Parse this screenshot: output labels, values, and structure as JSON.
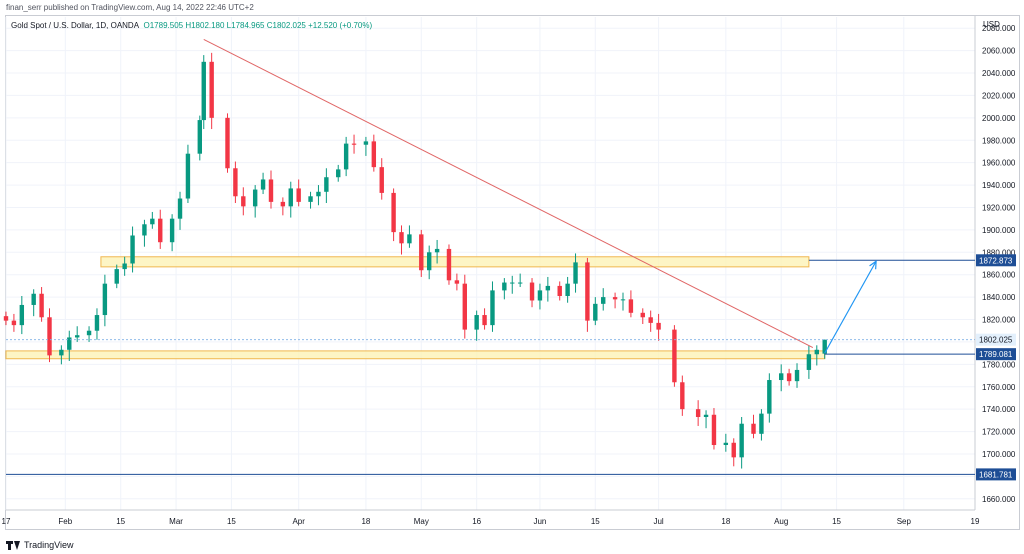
{
  "header": {
    "publisher": "finan_serr published on TradingView.com, Aug 14, 2022 22:46 UTC+2",
    "symbol": "Gold Spot / U.S. Dollar, 1D, OANDA",
    "ohlc": "O1789.505  H1802.180  L1784.965  C1802.025  +12.520 (+0.70%)",
    "currency": "USD"
  },
  "footer": {
    "brand": "TradingView",
    "icon": "tradingview-logo-icon"
  },
  "colors": {
    "up": "#089981",
    "down": "#f23645",
    "trendline": "#e06666",
    "zone_fill": "#fdf3b6",
    "zone_stroke": "#f0b74f",
    "hline": "#1e4e96",
    "arrow": "#2196f3",
    "last_price": "#e3f0fc"
  },
  "chart_data": {
    "type": "candlestick",
    "title": "Gold Spot / U.S. Dollar, 1D, OANDA",
    "ylim": [
      1650,
      2090
    ],
    "y_ticks": [
      1660,
      1680,
      1700,
      1720,
      1740,
      1760,
      1780,
      1800,
      1820,
      1840,
      1860,
      1880,
      1900,
      1920,
      1940,
      1960,
      1980,
      2000,
      2020,
      2040,
      2060,
      2080
    ],
    "y_tick_labels": [
      "1660.000",
      "1680.000",
      "1700.000",
      "1720.000",
      "1740.000",
      "1760.000",
      "1780.000",
      "1800.000",
      "1820.000",
      "1840.000",
      "1860.000",
      "1880.000",
      "1900.000",
      "1920.000",
      "1940.000",
      "1960.000",
      "1980.000",
      "2000.000",
      "2020.000",
      "2040.000",
      "2060.000",
      "2080.000"
    ],
    "x_range": [
      "2022-01-17",
      "2022-09-19"
    ],
    "x_ticks": [
      {
        "date": "2022-01-17",
        "label": "17"
      },
      {
        "date": "2022-02-01",
        "label": "Feb"
      },
      {
        "date": "2022-02-15",
        "label": "15"
      },
      {
        "date": "2022-03-01",
        "label": "Mar"
      },
      {
        "date": "2022-03-15",
        "label": "15"
      },
      {
        "date": "2022-04-01",
        "label": "Apr"
      },
      {
        "date": "2022-04-18",
        "label": "18"
      },
      {
        "date": "2022-05-02",
        "label": "May"
      },
      {
        "date": "2022-05-16",
        "label": "16"
      },
      {
        "date": "2022-06-01",
        "label": "Jun"
      },
      {
        "date": "2022-06-15",
        "label": "15"
      },
      {
        "date": "2022-07-01",
        "label": "Jul"
      },
      {
        "date": "2022-07-18",
        "label": "18"
      },
      {
        "date": "2022-08-01",
        "label": "Aug"
      },
      {
        "date": "2022-08-15",
        "label": "15"
      },
      {
        "date": "2022-09-01",
        "label": "Sep"
      },
      {
        "date": "2022-09-19",
        "label": "19"
      }
    ],
    "closes": [
      [
        "2022-01-17",
        1819
      ],
      [
        "2022-01-19",
        1815
      ],
      [
        "2022-01-21",
        1833
      ],
      [
        "2022-01-24",
        1843
      ],
      [
        "2022-01-26",
        1822
      ],
      [
        "2022-01-28",
        1788
      ],
      [
        "2022-01-31",
        1793
      ],
      [
        "2022-02-02",
        1804
      ],
      [
        "2022-02-04",
        1806
      ],
      [
        "2022-02-07",
        1810
      ],
      [
        "2022-02-09",
        1824
      ],
      [
        "2022-02-11",
        1852
      ],
      [
        "2022-02-14",
        1865
      ],
      [
        "2022-02-16",
        1870
      ],
      [
        "2022-02-18",
        1895
      ],
      [
        "2022-02-21",
        1905
      ],
      [
        "2022-02-23",
        1910
      ],
      [
        "2022-02-25",
        1889
      ],
      [
        "2022-02-28",
        1910
      ],
      [
        "2022-03-02",
        1928
      ],
      [
        "2022-03-04",
        1968
      ],
      [
        "2022-03-07",
        1998
      ],
      [
        "2022-03-08",
        2050
      ],
      [
        "2022-03-10",
        2000
      ],
      [
        "2022-03-14",
        1955
      ],
      [
        "2022-03-16",
        1930
      ],
      [
        "2022-03-18",
        1921
      ],
      [
        "2022-03-21",
        1936
      ],
      [
        "2022-03-23",
        1945
      ],
      [
        "2022-03-25",
        1925
      ],
      [
        "2022-03-28",
        1921
      ],
      [
        "2022-03-30",
        1937
      ],
      [
        "2022-04-01",
        1925
      ],
      [
        "2022-04-04",
        1930
      ],
      [
        "2022-04-06",
        1934
      ],
      [
        "2022-04-08",
        1947
      ],
      [
        "2022-04-11",
        1954
      ],
      [
        "2022-04-13",
        1977
      ],
      [
        "2022-04-15",
        1976
      ],
      [
        "2022-04-18",
        1979
      ],
      [
        "2022-04-20",
        1956
      ],
      [
        "2022-04-22",
        1933
      ],
      [
        "2022-04-25",
        1898
      ],
      [
        "2022-04-27",
        1888
      ],
      [
        "2022-04-29",
        1896
      ],
      [
        "2022-05-02",
        1864
      ],
      [
        "2022-05-04",
        1880
      ],
      [
        "2022-05-06",
        1883
      ],
      [
        "2022-05-09",
        1855
      ],
      [
        "2022-05-11",
        1852
      ],
      [
        "2022-05-13",
        1811
      ],
      [
        "2022-05-16",
        1824
      ],
      [
        "2022-05-18",
        1815
      ],
      [
        "2022-05-20",
        1846
      ],
      [
        "2022-05-23",
        1853
      ],
      [
        "2022-05-25",
        1853
      ],
      [
        "2022-05-27",
        1853
      ],
      [
        "2022-05-30",
        1837
      ],
      [
        "2022-06-01",
        1846
      ],
      [
        "2022-06-03",
        1850
      ],
      [
        "2022-06-06",
        1841
      ],
      [
        "2022-06-08",
        1852
      ],
      [
        "2022-06-10",
        1871
      ],
      [
        "2022-06-13",
        1819
      ],
      [
        "2022-06-15",
        1834
      ],
      [
        "2022-06-17",
        1840
      ],
      [
        "2022-06-20",
        1838
      ],
      [
        "2022-06-22",
        1838
      ],
      [
        "2022-06-24",
        1826
      ],
      [
        "2022-06-27",
        1822
      ],
      [
        "2022-06-29",
        1817
      ],
      [
        "2022-07-01",
        1811
      ],
      [
        "2022-07-05",
        1764
      ],
      [
        "2022-07-07",
        1740
      ],
      [
        "2022-07-11",
        1733
      ],
      [
        "2022-07-13",
        1735
      ],
      [
        "2022-07-15",
        1708
      ],
      [
        "2022-07-18",
        1710
      ],
      [
        "2022-07-20",
        1697
      ],
      [
        "2022-07-22",
        1727
      ],
      [
        "2022-07-25",
        1718
      ],
      [
        "2022-07-27",
        1736
      ],
      [
        "2022-07-29",
        1766
      ],
      [
        "2022-08-01",
        1772
      ],
      [
        "2022-08-03",
        1765
      ],
      [
        "2022-08-05",
        1775
      ],
      [
        "2022-08-08",
        1789
      ],
      [
        "2022-08-10",
        1793
      ],
      [
        "2022-08-12",
        1802
      ]
    ],
    "last_candle": {
      "date": "2022-08-12",
      "open": 1789.505,
      "high": 1802.18,
      "low": 1784.965,
      "close": 1802.025
    },
    "trendline": {
      "from": [
        "2022-03-08",
        2070
      ],
      "to": [
        "2022-08-09",
        1795
      ]
    },
    "resistance_zone": {
      "from": "2022-02-10",
      "to": "2022-08-08",
      "low": 1867,
      "high": 1876
    },
    "support_zone": {
      "from": "2022-01-17",
      "to": "2022-08-12",
      "low": 1785,
      "high": 1792
    },
    "horizontal_lines": [
      {
        "price": 1872.873,
        "label": "1872.873",
        "from": "2022-08-08"
      },
      {
        "price": 1789.081,
        "label": "1789.081",
        "from": "2022-08-12"
      },
      {
        "price": 1681.781,
        "label": "1681.781",
        "from": "2022-01-17"
      }
    ],
    "last_price_label": "1802.025",
    "projection_arrow": {
      "from": [
        "2022-08-12",
        1790
      ],
      "to": [
        "2022-08-25",
        1872
      ]
    }
  }
}
